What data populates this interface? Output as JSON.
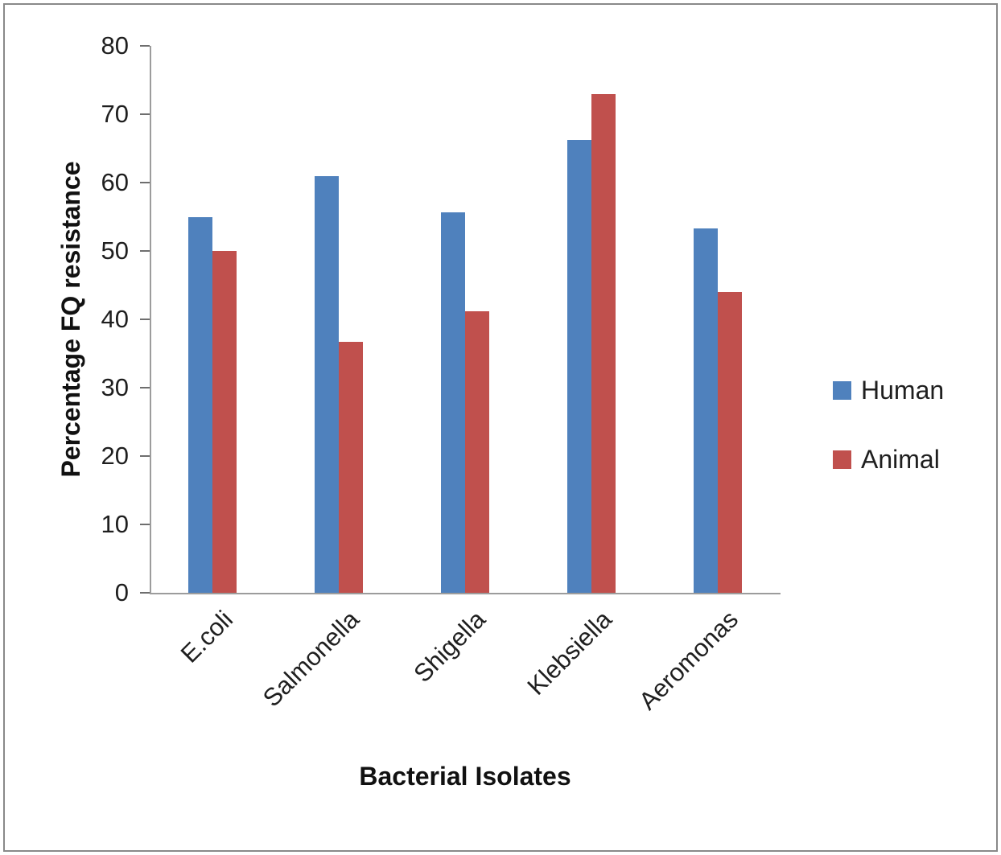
{
  "chart_data": {
    "type": "bar",
    "title": "",
    "categories": [
      "E.coli",
      "Salmonella",
      "Shigella",
      "Klebsiella",
      "Aeromonas"
    ],
    "series": [
      {
        "name": "Human",
        "color": "#4f81bd",
        "values": [
          55,
          61,
          55.6,
          66.2,
          53.3
        ]
      },
      {
        "name": "Animal",
        "color": "#c0504d",
        "values": [
          50,
          36.7,
          41.2,
          73,
          44
        ]
      }
    ],
    "xlabel": "Bacterial Isolates",
    "ylabel": "Percentage FQ resistance",
    "ylim": [
      0,
      80
    ],
    "ytick_step": 10,
    "yticks": [
      0,
      10,
      20,
      30,
      40,
      50,
      60,
      70,
      80
    ],
    "legend_position": "right",
    "grid": false
  },
  "style": {
    "axis_color": "#9c9c9c",
    "tick_color": "#6e6e6e",
    "frame_color": "#898989",
    "background": "#ffffff"
  }
}
